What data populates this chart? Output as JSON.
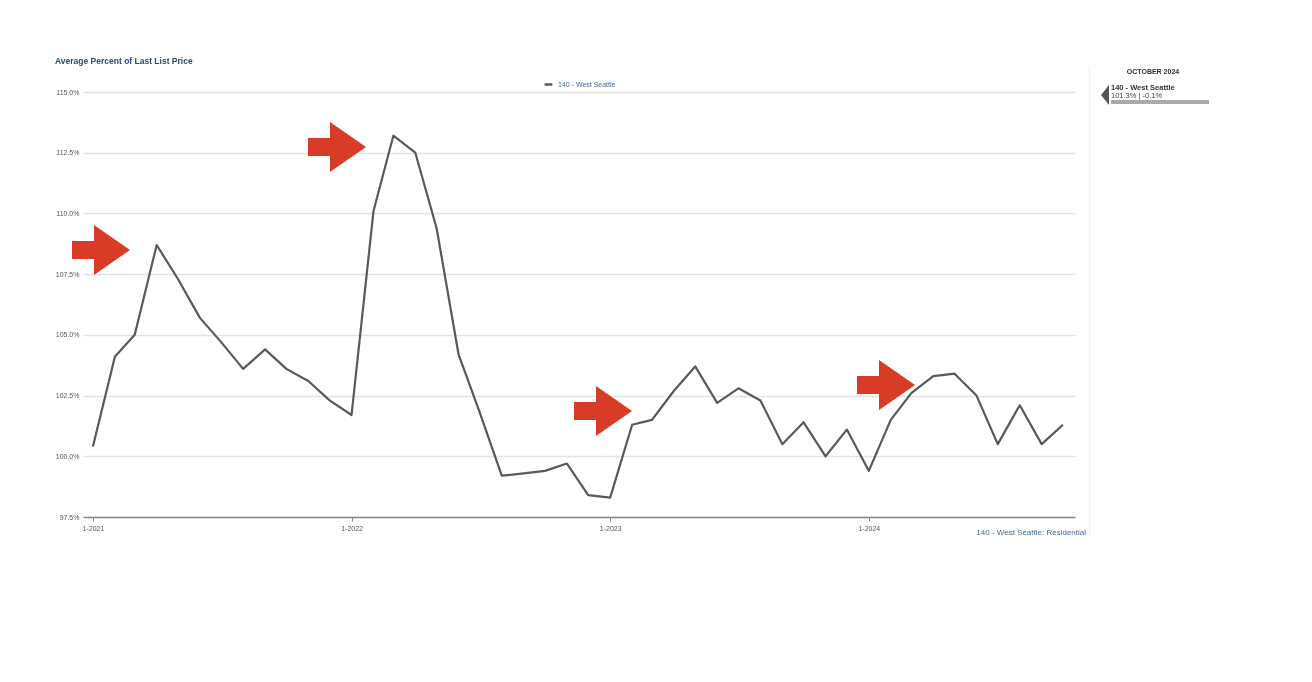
{
  "chart_data": {
    "type": "line",
    "title": "Average Percent of Last List Price",
    "x": [
      "2021-01",
      "2021-02",
      "2021-03",
      "2021-04",
      "2021-05",
      "2021-06",
      "2021-07",
      "2021-08",
      "2021-09",
      "2021-10",
      "2021-11",
      "2021-12",
      "2022-01",
      "2022-02",
      "2022-03",
      "2022-04",
      "2022-05",
      "2022-06",
      "2022-07",
      "2022-08",
      "2022-09",
      "2022-10",
      "2022-11",
      "2022-12",
      "2023-01",
      "2023-02",
      "2023-03",
      "2023-04",
      "2023-05",
      "2023-06",
      "2023-07",
      "2023-08",
      "2023-09",
      "2023-10",
      "2023-11",
      "2023-12",
      "2024-01",
      "2024-02",
      "2024-03",
      "2024-04",
      "2024-05",
      "2024-06",
      "2024-07",
      "2024-08",
      "2024-09",
      "2024-10"
    ],
    "series": [
      {
        "name": "140 - West Seattle",
        "color": "#555a5a",
        "values": [
          100.4,
          104.1,
          105.0,
          108.7,
          107.3,
          105.7,
          104.7,
          103.6,
          104.4,
          103.6,
          103.1,
          102.3,
          101.7,
          110.1,
          113.2,
          112.5,
          109.4,
          104.2,
          101.8,
          99.2,
          99.3,
          99.4,
          99.7,
          98.4,
          98.3,
          101.3,
          101.5,
          102.7,
          103.7,
          102.2,
          102.8,
          102.3,
          100.5,
          101.4,
          100.0,
          101.1,
          99.4,
          101.5,
          102.6,
          103.3,
          103.4,
          102.5,
          100.5,
          102.1,
          100.5,
          101.3
        ]
      }
    ],
    "xlim": [
      "2020-12-18",
      "2024-10-18"
    ],
    "xticks": [
      {
        "value": "2021-01",
        "label": "1-2021"
      },
      {
        "value": "2022-01",
        "label": "1-2022"
      },
      {
        "value": "2023-01",
        "label": "1-2023"
      },
      {
        "value": "2024-01",
        "label": "1-2024"
      }
    ],
    "ylim": [
      97.5,
      115
    ],
    "yticks": [
      {
        "value": 97.5,
        "label": "97.5%"
      },
      {
        "value": 100,
        "label": "100.0%"
      },
      {
        "value": 102.5,
        "label": "102.5%"
      },
      {
        "value": 105,
        "label": "105.0%"
      },
      {
        "value": 107.5,
        "label": "107.5%"
      },
      {
        "value": 110,
        "label": "110.0%"
      },
      {
        "value": 112.5,
        "label": "112.5%"
      },
      {
        "value": 115,
        "label": "115.0%"
      }
    ],
    "grid": "y",
    "legend": "top",
    "marker": "none",
    "line_style": "solid",
    "annotations": [
      "140 - West Seattle: Residential",
      "OCTOBER 2024",
      "140 - West Seattle",
      "101.3% | -0.1%"
    ]
  }
}
